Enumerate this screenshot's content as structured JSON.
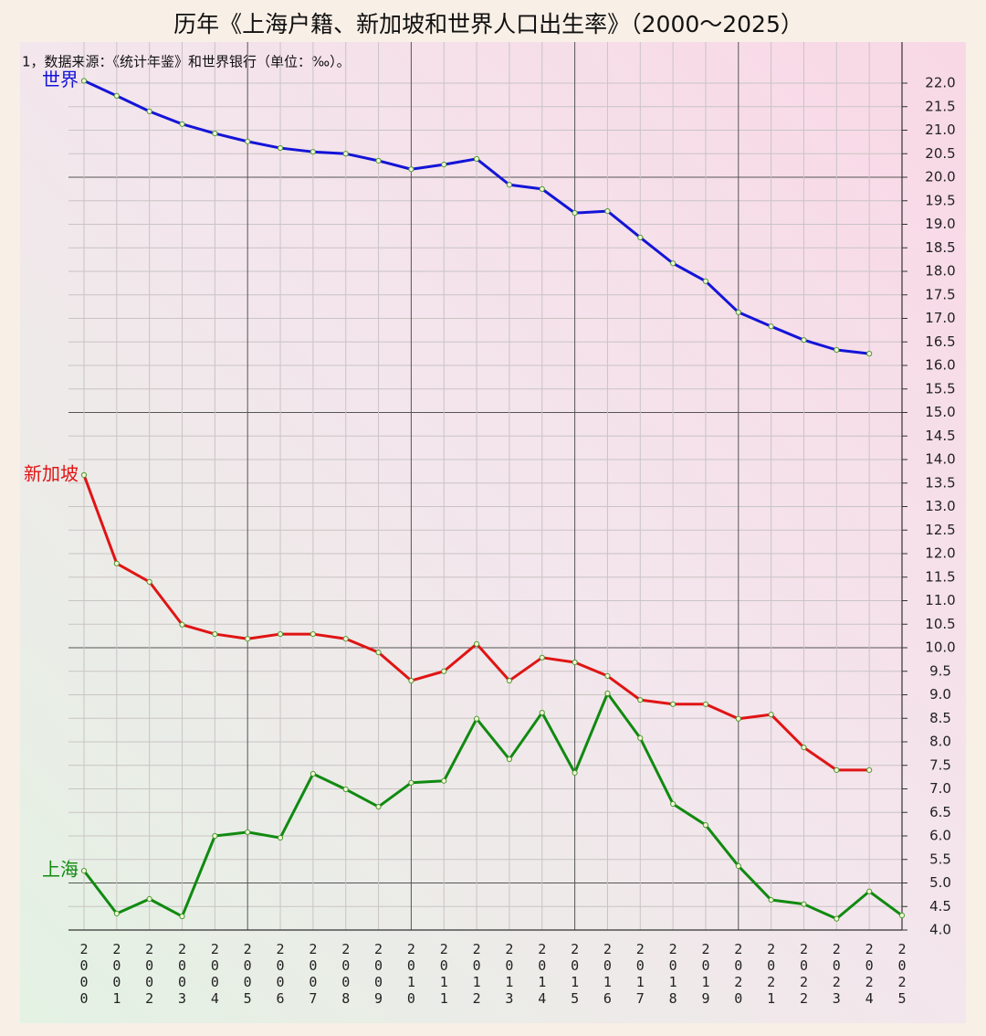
{
  "chart_data": {
    "type": "line",
    "title": "历年《上海户籍、新加坡和世界人口出生率》（2000～2025）",
    "subtitle": "1，数据来源：《统计年鉴》和世界银行（单位：‰）。",
    "categories": [
      "2000",
      "2001",
      "2002",
      "2003",
      "2004",
      "2005",
      "2006",
      "2007",
      "2008",
      "2009",
      "2010",
      "2011",
      "2012",
      "2013",
      "2014",
      "2015",
      "2016",
      "2017",
      "2018",
      "2019",
      "2020",
      "2021",
      "2022",
      "2023",
      "2024",
      "2025"
    ],
    "series": [
      {
        "name": "世界",
        "color": "#1414d8",
        "values": [
          22.05,
          21.73,
          21.4,
          21.13,
          20.93,
          20.76,
          20.62,
          20.54,
          20.5,
          20.35,
          20.17,
          20.27,
          20.39,
          19.84,
          19.75,
          19.24,
          19.28,
          18.72,
          18.17,
          17.79,
          17.13,
          16.83,
          16.54,
          16.33,
          16.25,
          null
        ]
      },
      {
        "name": "新加坡",
        "color": "#e01414",
        "values": [
          13.67,
          11.79,
          11.4,
          10.49,
          10.29,
          10.19,
          10.29,
          10.29,
          10.19,
          9.9,
          9.3,
          9.5,
          10.08,
          9.3,
          9.79,
          9.69,
          9.4,
          8.89,
          8.8,
          8.8,
          8.49,
          8.58,
          7.88,
          7.4,
          7.4,
          null
        ]
      },
      {
        "name": "上海",
        "color": "#108a10",
        "values": [
          5.26,
          4.35,
          4.66,
          4.29,
          6.0,
          6.08,
          5.96,
          7.32,
          6.99,
          6.62,
          7.13,
          7.17,
          8.49,
          7.63,
          8.62,
          7.34,
          9.03,
          8.08,
          6.68,
          6.23,
          5.36,
          4.64,
          4.55,
          4.24,
          4.82,
          4.31
        ]
      }
    ],
    "ylim": [
      4,
      22
    ],
    "yticks": [
      {
        "value": 4,
        "label": "4.0"
      },
      4.5,
      {
        "value": 5,
        "label": "5.0"
      },
      5.5,
      {
        "value": 6,
        "label": "6.0"
      },
      6.5,
      {
        "value": 7,
        "label": "7.0"
      },
      7.5,
      {
        "value": 8,
        "label": "8.0"
      },
      8.5,
      {
        "value": 9,
        "label": "9.0"
      },
      9.5,
      {
        "value": 10,
        "label": "10.0"
      },
      10.5,
      {
        "value": 11,
        "label": "11.0"
      },
      11.5,
      {
        "value": 12,
        "label": "12.0"
      },
      12.5,
      {
        "value": 13,
        "label": "13.0"
      },
      13.5,
      {
        "value": 14,
        "label": "14.0"
      },
      14.5,
      {
        "value": 15,
        "label": "15.0"
      },
      15.5,
      {
        "value": 16,
        "label": "16.0"
      },
      16.5,
      {
        "value": 17,
        "label": "17.0"
      },
      17.5,
      {
        "value": 18,
        "label": "18.0"
      },
      18.5,
      {
        "value": 19,
        "label": "19.0"
      },
      19.5,
      {
        "value": 20,
        "label": "20.0"
      },
      20.5,
      {
        "value": 21,
        "label": "21.0"
      },
      21.5,
      {
        "value": 22,
        "label": "22.0"
      }
    ],
    "grid": true
  }
}
